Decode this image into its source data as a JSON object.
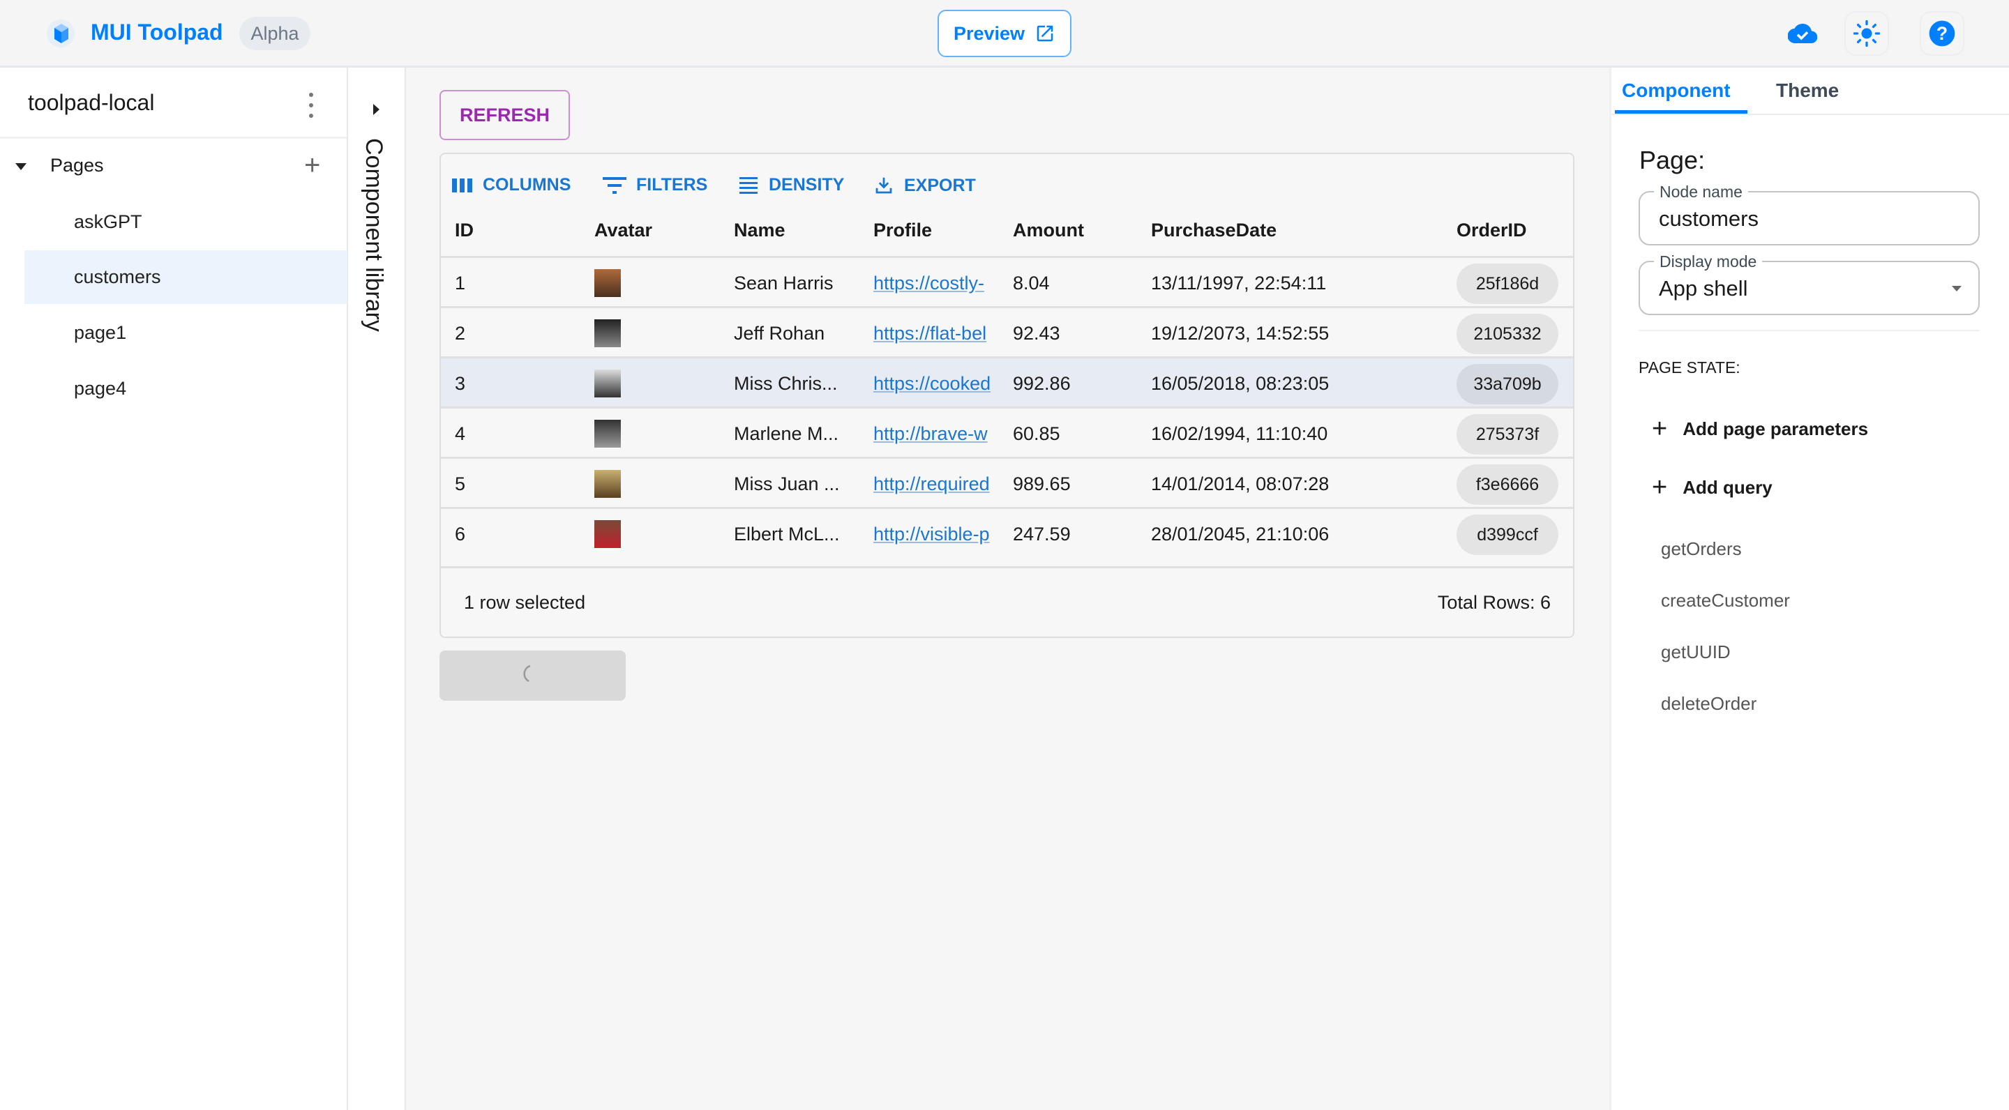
{
  "header": {
    "brand": "MUI Toolpad",
    "badge": "Alpha",
    "preview_label": "Preview",
    "icons": [
      "toolpad-logo-icon",
      "open-external-icon",
      "cloud-check-icon",
      "sun-icon",
      "help-icon"
    ],
    "accent": "#007FFF"
  },
  "sidebar": {
    "project": "toolpad-local",
    "section": "Pages",
    "pages": [
      {
        "label": "askGPT"
      },
      {
        "label": "customers",
        "selected": true
      },
      {
        "label": "page1"
      },
      {
        "label": "page4"
      }
    ]
  },
  "component_library": {
    "label": "Component library"
  },
  "canvas": {
    "refresh_label": "REFRESH",
    "toolbar": {
      "columns": "COLUMNS",
      "filters": "FILTERS",
      "density": "DENSITY",
      "export": "EXPORT"
    },
    "columns": [
      "ID",
      "Avatar",
      "Name",
      "Profile",
      "Amount",
      "PurchaseDate",
      "OrderID"
    ],
    "rows": [
      {
        "id": "1",
        "name": "Sean Harris",
        "profile": "https://costly-",
        "amount": "8.04",
        "date": "13/11/1997, 22:54:11",
        "order": "25f186d"
      },
      {
        "id": "2",
        "name": "Jeff Rohan",
        "profile": "https://flat-bel",
        "amount": "92.43",
        "date": "19/12/2073, 14:52:55",
        "order": "2105332"
      },
      {
        "id": "3",
        "name": "Miss Chris...",
        "profile": "https://cooked",
        "amount": "992.86",
        "date": "16/05/2018, 08:23:05",
        "order": "33a709b",
        "selected": true
      },
      {
        "id": "4",
        "name": "Marlene M...",
        "profile": "http://brave-w",
        "amount": "60.85",
        "date": "16/02/1994, 11:10:40",
        "order": "275373f"
      },
      {
        "id": "5",
        "name": "Miss Juan ...",
        "profile": "http://required",
        "amount": "989.65",
        "date": "14/01/2014, 08:07:28",
        "order": "f3e6666"
      },
      {
        "id": "6",
        "name": "Elbert McL...",
        "profile": "http://visible-p",
        "amount": "247.59",
        "date": "28/01/2045, 21:10:06",
        "order": "d399ccf"
      }
    ],
    "footer": {
      "selected": "1 row selected",
      "total": "Total Rows: 6"
    }
  },
  "inspector": {
    "tabs": [
      {
        "label": "Component",
        "active": true
      },
      {
        "label": "Theme"
      }
    ],
    "title": "Page:",
    "node_name": {
      "label": "Node name",
      "value": "customers"
    },
    "display_mode": {
      "label": "Display mode",
      "value": "App shell"
    },
    "page_state": "PAGE STATE:",
    "add_params": "Add page parameters",
    "add_query": "Add query",
    "queries": [
      "getOrders",
      "createCustomer",
      "getUUID",
      "deleteOrder"
    ]
  }
}
